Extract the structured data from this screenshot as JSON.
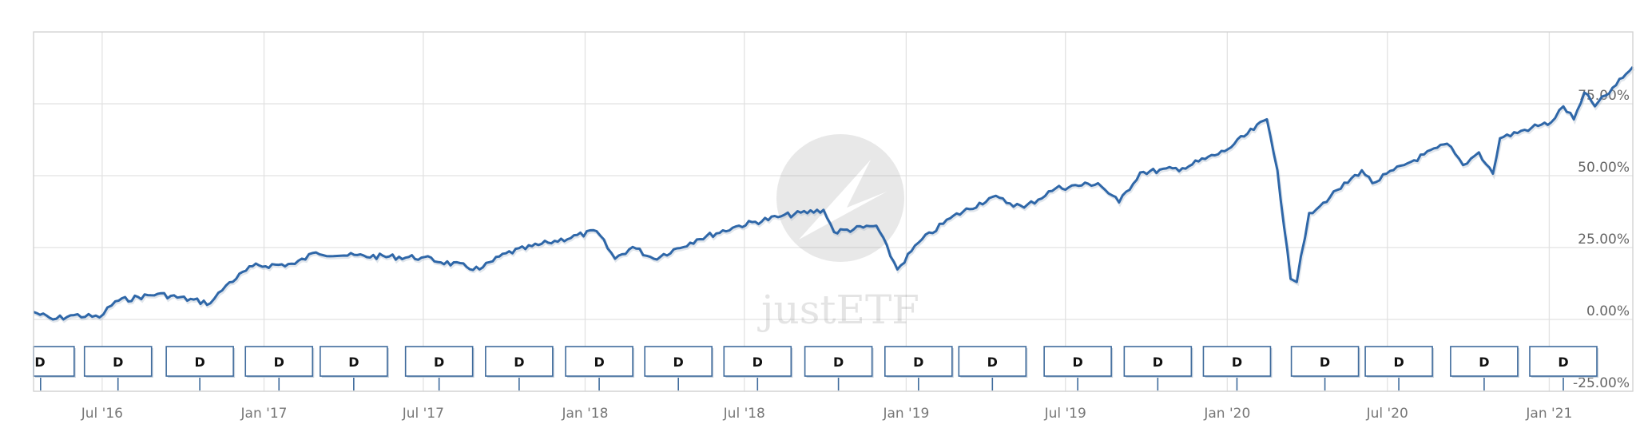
{
  "chart_data": {
    "type": "line",
    "title": "",
    "xlabel": "",
    "ylabel": "",
    "x_range": [
      "2016-04-14",
      "2021-04-06"
    ],
    "ylim": [
      -25,
      100
    ],
    "grid": true,
    "y_axis_position": "right",
    "line_color": "#2f67a8",
    "y_ticks": [
      {
        "value": -25,
        "label": "-25.00%"
      },
      {
        "value": 0,
        "label": "0.00%"
      },
      {
        "value": 25,
        "label": "25.00%"
      },
      {
        "value": 50,
        "label": "50.00%"
      },
      {
        "value": 75,
        "label": "75.00%"
      }
    ],
    "x_ticks": [
      {
        "date": "2016-07-01",
        "label": "Jul '16"
      },
      {
        "date": "2017-01-01",
        "label": "Jan '17"
      },
      {
        "date": "2017-07-01",
        "label": "Jul '17"
      },
      {
        "date": "2018-01-01",
        "label": "Jan '18"
      },
      {
        "date": "2018-07-01",
        "label": "Jul '18"
      },
      {
        "date": "2019-01-01",
        "label": "Jan '19"
      },
      {
        "date": "2019-07-01",
        "label": "Jul '19"
      },
      {
        "date": "2020-01-01",
        "label": "Jan '20"
      },
      {
        "date": "2020-07-01",
        "label": "Jul '20"
      },
      {
        "date": "2021-01-01",
        "label": "Jan '21"
      }
    ],
    "series": [
      {
        "x": [
          "2016-04-14",
          "2016-05-06",
          "2016-05-30",
          "2016-06-28",
          "2016-07-16",
          "2016-09-02",
          "2016-11-01",
          "2016-11-19",
          "2016-12-19",
          "2017-02-05",
          "2017-03-01",
          "2017-04-06",
          "2017-06-29",
          "2017-09-03",
          "2017-10-03",
          "2017-11-20",
          "2018-01-14",
          "2018-02-04",
          "2018-02-24",
          "2018-03-20",
          "2018-05-08",
          "2018-06-25",
          "2018-08-12",
          "2018-09-29",
          "2018-10-11",
          "2018-11-28",
          "2018-12-22",
          "2019-01-15",
          "2019-02-20",
          "2019-04-09",
          "2019-05-15",
          "2019-06-20",
          "2019-08-07",
          "2019-08-31",
          "2019-09-24",
          "2019-11-11",
          "2019-12-29",
          "2020-02-15",
          "2020-02-27",
          "2020-03-13",
          "2020-03-20",
          "2020-04-03",
          "2020-04-27",
          "2020-06-02",
          "2020-06-14",
          "2020-07-20",
          "2020-09-07",
          "2020-09-25",
          "2020-10-13",
          "2020-10-29",
          "2020-11-06",
          "2020-12-12",
          "2021-01-03",
          "2021-01-17",
          "2021-01-29",
          "2021-02-10",
          "2021-02-22",
          "2021-03-18",
          "2021-04-06"
        ],
        "y": [
          2.6,
          0,
          1.5,
          0.7,
          6.3,
          8.9,
          5.6,
          11.9,
          18.5,
          19.3,
          23.3,
          22.2,
          21.5,
          17.4,
          23.0,
          26.7,
          30.7,
          21.1,
          25.2,
          21.1,
          27.8,
          32.6,
          35.9,
          38.1,
          30.4,
          32.6,
          17.4,
          26.7,
          35.2,
          42.6,
          38.9,
          45.6,
          47.4,
          40.7,
          51.1,
          52.6,
          58.5,
          69.6,
          51.9,
          14.1,
          13.0,
          37.0,
          42.6,
          51.9,
          47.4,
          53.7,
          61.1,
          53.7,
          58.1,
          50.7,
          63.0,
          66.7,
          68.5,
          74.1,
          69.6,
          78.9,
          74.1,
          81.5,
          87.8
        ]
      }
    ],
    "flags": [
      {
        "date": "2016-04-22",
        "label": "D"
      },
      {
        "date": "2016-07-19",
        "label": "D"
      },
      {
        "date": "2016-10-20",
        "label": "D"
      },
      {
        "date": "2017-01-18",
        "label": "D"
      },
      {
        "date": "2017-04-13",
        "label": "D"
      },
      {
        "date": "2017-07-19",
        "label": "D"
      },
      {
        "date": "2017-10-18",
        "label": "D"
      },
      {
        "date": "2018-01-17",
        "label": "D"
      },
      {
        "date": "2018-04-17",
        "label": "D"
      },
      {
        "date": "2018-07-16",
        "label": "D"
      },
      {
        "date": "2018-10-16",
        "label": "D"
      },
      {
        "date": "2019-01-15",
        "label": "D"
      },
      {
        "date": "2019-04-09",
        "label": "D"
      },
      {
        "date": "2019-07-15",
        "label": "D"
      },
      {
        "date": "2019-10-14",
        "label": "D"
      },
      {
        "date": "2020-01-12",
        "label": "D"
      },
      {
        "date": "2020-04-21",
        "label": "D"
      },
      {
        "date": "2020-07-14",
        "label": "D"
      },
      {
        "date": "2020-10-19",
        "label": "D"
      },
      {
        "date": "2021-01-17",
        "label": "D"
      }
    ],
    "watermark": "justETF"
  }
}
